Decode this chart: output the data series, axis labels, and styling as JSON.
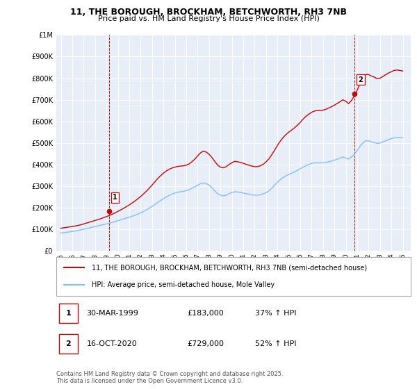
{
  "title": "11, THE BOROUGH, BROCKHAM, BETCHWORTH, RH3 7NB",
  "subtitle": "Price paid vs. HM Land Registry's House Price Index (HPI)",
  "legend_entry1": "11, THE BOROUGH, BROCKHAM, BETCHWORTH, RH3 7NB (semi-detached house)",
  "legend_entry2": "HPI: Average price, semi-detached house, Mole Valley",
  "annotation1_label": "1",
  "annotation1_date": "30-MAR-1999",
  "annotation1_price": "£183,000",
  "annotation1_hpi": "37% ↑ HPI",
  "annotation1_year": 1999.25,
  "annotation1_value": 183000,
  "annotation2_label": "2",
  "annotation2_date": "16-OCT-2020",
  "annotation2_price": "£729,000",
  "annotation2_hpi": "52% ↑ HPI",
  "annotation2_year": 2020.79,
  "annotation2_value": 729000,
  "footer": "Contains HM Land Registry data © Crown copyright and database right 2025.\nThis data is licensed under the Open Government Licence v3.0.",
  "line1_color": "#cc0000",
  "line2_color": "#7fbfff",
  "background_color": "#e8eef8",
  "ylim": [
    0,
    1000000
  ],
  "xlim_start": 1994.6,
  "xlim_end": 2025.7,
  "hpi_years": [
    1995.0,
    1995.25,
    1995.5,
    1995.75,
    1996.0,
    1996.25,
    1996.5,
    1996.75,
    1997.0,
    1997.25,
    1997.5,
    1997.75,
    1998.0,
    1998.25,
    1998.5,
    1998.75,
    1999.0,
    1999.25,
    1999.5,
    1999.75,
    2000.0,
    2000.25,
    2000.5,
    2000.75,
    2001.0,
    2001.25,
    2001.5,
    2001.75,
    2002.0,
    2002.25,
    2002.5,
    2002.75,
    2003.0,
    2003.25,
    2003.5,
    2003.75,
    2004.0,
    2004.25,
    2004.5,
    2004.75,
    2005.0,
    2005.25,
    2005.5,
    2005.75,
    2006.0,
    2006.25,
    2006.5,
    2006.75,
    2007.0,
    2007.25,
    2007.5,
    2007.75,
    2008.0,
    2008.25,
    2008.5,
    2008.75,
    2009.0,
    2009.25,
    2009.5,
    2009.75,
    2010.0,
    2010.25,
    2010.5,
    2010.75,
    2011.0,
    2011.25,
    2011.5,
    2011.75,
    2012.0,
    2012.25,
    2012.5,
    2012.75,
    2013.0,
    2013.25,
    2013.5,
    2013.75,
    2014.0,
    2014.25,
    2014.5,
    2014.75,
    2015.0,
    2015.25,
    2015.5,
    2015.75,
    2016.0,
    2016.25,
    2016.5,
    2016.75,
    2017.0,
    2017.25,
    2017.5,
    2017.75,
    2018.0,
    2018.25,
    2018.5,
    2018.75,
    2019.0,
    2019.25,
    2019.5,
    2019.75,
    2020.0,
    2020.25,
    2020.5,
    2020.75,
    2021.0,
    2021.25,
    2021.5,
    2021.75,
    2022.0,
    2022.25,
    2022.5,
    2022.75,
    2023.0,
    2023.25,
    2023.5,
    2023.75,
    2024.0,
    2024.25,
    2024.5,
    2024.75,
    2025.0
  ],
  "hpi_values": [
    83000,
    84500,
    86000,
    88000,
    90000,
    92000,
    95000,
    97500,
    100000,
    103000,
    106000,
    110000,
    113000,
    116000,
    119000,
    122000,
    125000,
    128000,
    132000,
    136000,
    140000,
    144000,
    148000,
    152000,
    156000,
    161000,
    165000,
    170000,
    176000,
    183000,
    190000,
    198000,
    206000,
    215000,
    224000,
    233000,
    242000,
    250000,
    257000,
    263000,
    268000,
    272000,
    274000,
    276000,
    279000,
    284000,
    290000,
    297000,
    304000,
    312000,
    315000,
    312000,
    305000,
    293000,
    278000,
    265000,
    258000,
    255000,
    258000,
    265000,
    270000,
    274000,
    273000,
    271000,
    268000,
    265000,
    263000,
    260000,
    258000,
    258000,
    260000,
    264000,
    270000,
    278000,
    290000,
    304000,
    318000,
    330000,
    340000,
    348000,
    354000,
    360000,
    366000,
    373000,
    380000,
    388000,
    395000,
    400000,
    405000,
    408000,
    408000,
    408000,
    408000,
    410000,
    413000,
    416000,
    420000,
    425000,
    430000,
    435000,
    430000,
    425000,
    435000,
    448000,
    465000,
    485000,
    500000,
    510000,
    510000,
    505000,
    502000,
    498000,
    500000,
    505000,
    510000,
    516000,
    520000,
    524000,
    526000,
    525000,
    524000
  ],
  "red_years": [
    1995.0,
    1995.25,
    1995.5,
    1995.75,
    1996.0,
    1996.25,
    1996.5,
    1996.75,
    1997.0,
    1997.25,
    1997.5,
    1997.75,
    1998.0,
    1998.25,
    1998.5,
    1998.75,
    1999.0,
    1999.25,
    1999.5,
    1999.75,
    2000.0,
    2000.25,
    2000.5,
    2000.75,
    2001.0,
    2001.25,
    2001.5,
    2001.75,
    2002.0,
    2002.25,
    2002.5,
    2002.75,
    2003.0,
    2003.25,
    2003.5,
    2003.75,
    2004.0,
    2004.25,
    2004.5,
    2004.75,
    2005.0,
    2005.25,
    2005.5,
    2005.75,
    2006.0,
    2006.25,
    2006.5,
    2006.75,
    2007.0,
    2007.25,
    2007.5,
    2007.75,
    2008.0,
    2008.25,
    2008.5,
    2008.75,
    2009.0,
    2009.25,
    2009.5,
    2009.75,
    2010.0,
    2010.25,
    2010.5,
    2010.75,
    2011.0,
    2011.25,
    2011.5,
    2011.75,
    2012.0,
    2012.25,
    2012.5,
    2012.75,
    2013.0,
    2013.25,
    2013.5,
    2013.75,
    2014.0,
    2014.25,
    2014.5,
    2014.75,
    2015.0,
    2015.25,
    2015.5,
    2015.75,
    2016.0,
    2016.25,
    2016.5,
    2016.75,
    2017.0,
    2017.25,
    2017.5,
    2017.75,
    2018.0,
    2018.25,
    2018.5,
    2018.75,
    2019.0,
    2019.25,
    2019.5,
    2019.75,
    2020.0,
    2020.25,
    2020.5,
    2020.75,
    2021.0,
    2021.25,
    2021.5,
    2021.75,
    2022.0,
    2022.25,
    2022.5,
    2022.75,
    2023.0,
    2023.25,
    2023.5,
    2023.75,
    2024.0,
    2024.25,
    2024.5,
    2024.75,
    2025.0
  ],
  "red_values": [
    105000,
    107000,
    109000,
    111000,
    113000,
    115000,
    118000,
    121000,
    125000,
    129000,
    133000,
    137000,
    141000,
    145000,
    149000,
    154000,
    159000,
    164000,
    170000,
    176000,
    183000,
    190000,
    197000,
    205000,
    213000,
    222000,
    231000,
    241000,
    252000,
    264000,
    276000,
    290000,
    305000,
    320000,
    335000,
    348000,
    360000,
    370000,
    378000,
    384000,
    388000,
    391000,
    393000,
    394000,
    397000,
    403000,
    413000,
    425000,
    440000,
    454000,
    462000,
    458000,
    448000,
    433000,
    415000,
    398000,
    388000,
    385000,
    390000,
    400000,
    408000,
    415000,
    413000,
    410000,
    406000,
    401000,
    397000,
    393000,
    390000,
    390000,
    394000,
    401000,
    412000,
    426000,
    445000,
    466000,
    488000,
    508000,
    525000,
    539000,
    550000,
    560000,
    570000,
    582000,
    595000,
    610000,
    623000,
    633000,
    642000,
    648000,
    650000,
    650000,
    652000,
    656000,
    662000,
    668000,
    675000,
    683000,
    691000,
    700000,
    693000,
    682000,
    697000,
    717000,
    744000,
    776000,
    800000,
    817000,
    817000,
    810000,
    805000,
    798000,
    800000,
    808000,
    816000,
    824000,
    830000,
    836000,
    838000,
    836000,
    833000
  ],
  "yticks": [
    0,
    100000,
    200000,
    300000,
    400000,
    500000,
    600000,
    700000,
    800000,
    900000,
    1000000
  ],
  "ylabels": [
    "£0",
    "£100K",
    "£200K",
    "£300K",
    "£400K",
    "£500K",
    "£600K",
    "£700K",
    "£800K",
    "£900K",
    "£1M"
  ]
}
